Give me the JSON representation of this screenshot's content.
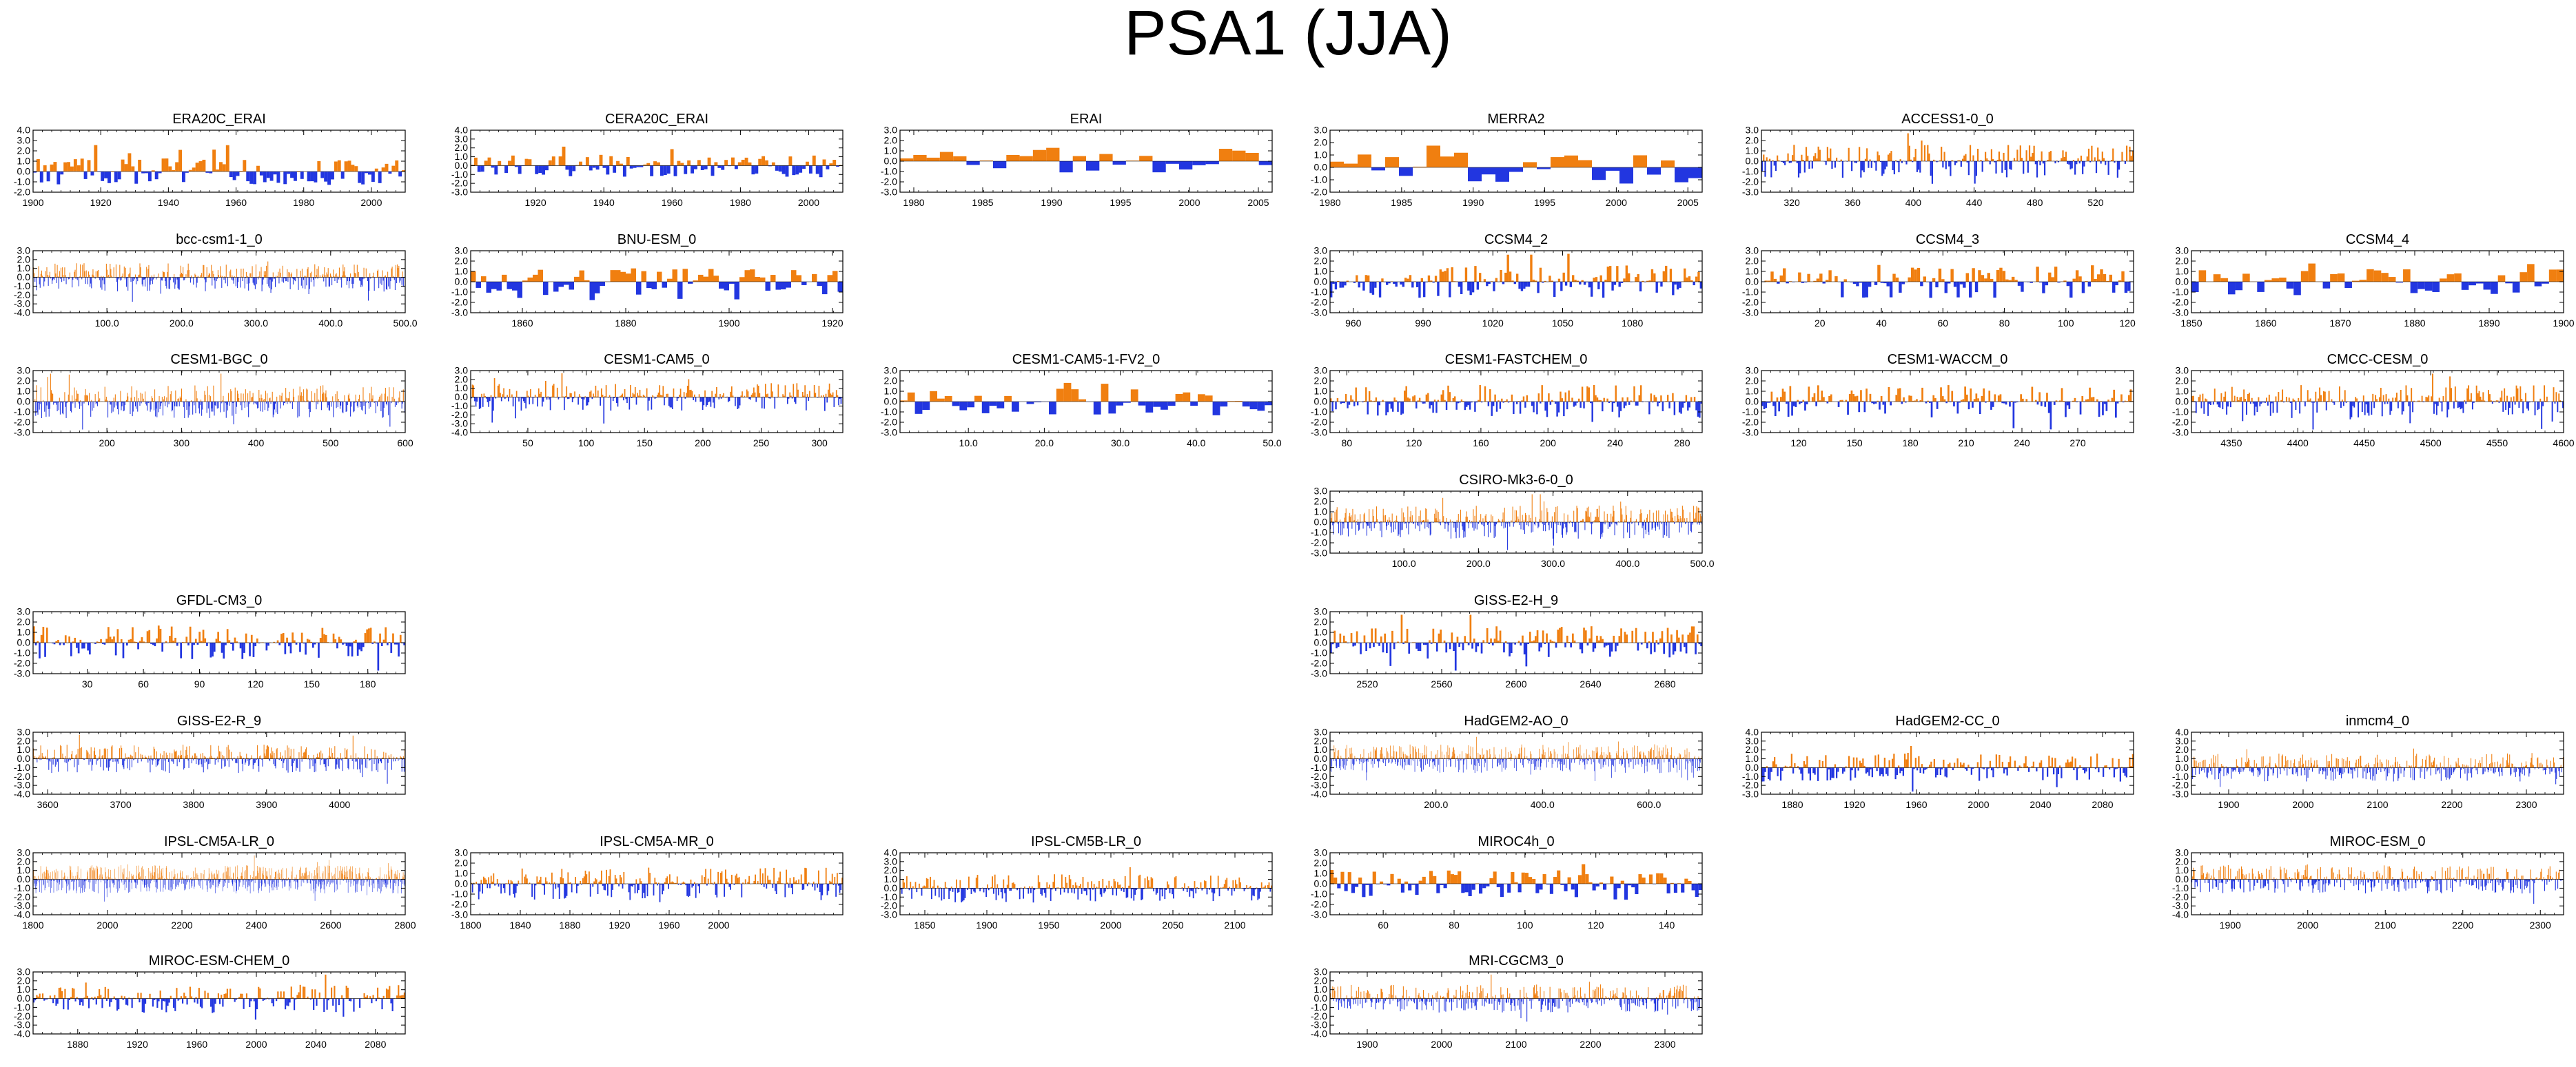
{
  "title": "PSA1 (JJA)",
  "colors": {
    "positive": "#f07f10",
    "negative": "#2236e0",
    "frame": "#000000"
  },
  "chart_data": [
    {
      "type": "area",
      "title": "ERA20C_ERAI",
      "xlim": [
        1900,
        2010
      ],
      "xticks": [
        "1900",
        "1920",
        "1940",
        "1960",
        "1980",
        "2000"
      ],
      "ylim": [
        -2.0,
        4.0
      ],
      "yticks": [
        "4.0",
        "3.0",
        "2.0",
        "1.0",
        "0.0",
        "-1.0",
        "-2.0"
      ],
      "n": 110,
      "style": "smooth",
      "seed": 1
    },
    {
      "type": "area",
      "title": "CERA20C_ERAI",
      "xlim": [
        1901,
        2010
      ],
      "xticks": [
        "1920",
        "1940",
        "1960",
        "1980",
        "2000"
      ],
      "ylim": [
        -3.0,
        4.0
      ],
      "yticks": [
        "4.0",
        "3.0",
        "2.0",
        "1.0",
        "0.0",
        "-1.0",
        "-2.0",
        "-3.0"
      ],
      "n": 110,
      "style": "smooth",
      "seed": 2
    },
    {
      "type": "area",
      "title": "ERAI",
      "xlim": [
        1979,
        2006
      ],
      "xticks": [
        "1980",
        "1985",
        "1990",
        "1995",
        "2000",
        "2005"
      ],
      "ylim": [
        -3.0,
        3.0
      ],
      "yticks": [
        "3.0",
        "2.0",
        "1.0",
        "0.0",
        "-1.0",
        "-2.0",
        "-3.0"
      ],
      "n": 28,
      "style": "smooth",
      "seed": 3
    },
    {
      "type": "area",
      "title": "MERRA2",
      "xlim": [
        1980,
        2006
      ],
      "xticks": [
        "1980",
        "1985",
        "1990",
        "1995",
        "2000",
        "2005"
      ],
      "ylim": [
        -2.0,
        3.0
      ],
      "yticks": [
        "3.0",
        "2.0",
        "1.0",
        "0.0",
        "-1.0",
        "-2.0"
      ],
      "n": 27,
      "style": "smooth",
      "seed": 4
    },
    {
      "type": "area",
      "title": "ACCESS1-0_0",
      "xlim": [
        300,
        545
      ],
      "xticks": [
        "320",
        "360",
        "400",
        "440",
        "480",
        "520"
      ],
      "ylim": [
        -3.0,
        3.0
      ],
      "yticks": [
        "3.0",
        "2.0",
        "1.0",
        "0.0",
        "-1.0",
        "-2.0",
        "-3.0"
      ],
      "n": 245,
      "style": "spiky",
      "seed": 5
    },
    {
      "type": "area",
      "title": "bcc-csm1-1_0",
      "xlim": [
        1,
        500
      ],
      "xticks": [
        "100.0",
        "200.0",
        "300.0",
        "400.0",
        "500.0"
      ],
      "ylim": [
        -4.0,
        3.0
      ],
      "yticks": [
        "3.0",
        "2.0",
        "1.0",
        "0.0",
        "-1.0",
        "-2.0",
        "-3.0",
        "-4.0"
      ],
      "n": 500,
      "style": "spiky",
      "seed": 6
    },
    {
      "type": "area",
      "title": "BNU-ESM_0",
      "xlim": [
        1850,
        1922
      ],
      "xticks": [
        "1860",
        "1880",
        "1900",
        "1920"
      ],
      "ylim": [
        -3.0,
        3.0
      ],
      "yticks": [
        "3.0",
        "2.0",
        "1.0",
        "0.0",
        "-1.0",
        "-2.0",
        "-3.0"
      ],
      "n": 72,
      "style": "smooth",
      "seed": 7
    },
    {
      "type": "area",
      "title": "CCSM4_2",
      "xlim": [
        950,
        1110
      ],
      "xticks": [
        "960",
        "990",
        "1020",
        "1050",
        "1080"
      ],
      "ylim": [
        -3.0,
        3.0
      ],
      "yticks": [
        "3.0",
        "2.0",
        "1.0",
        "0.0",
        "-1.0",
        "-2.0",
        "-3.0"
      ],
      "n": 160,
      "style": "spiky",
      "seed": 8
    },
    {
      "type": "area",
      "title": "CCSM4_3",
      "xlim": [
        1,
        122
      ],
      "xticks": [
        "20",
        "40",
        "60",
        "80",
        "100",
        "120"
      ],
      "ylim": [
        -3.0,
        3.0
      ],
      "yticks": [
        "3.0",
        "2.0",
        "1.0",
        "0.0",
        "-1.0",
        "-2.0",
        "-3.0"
      ],
      "n": 122,
      "style": "spiky",
      "seed": 9
    },
    {
      "type": "area",
      "title": "CCSM4_4",
      "xlim": [
        1850,
        1900
      ],
      "xticks": [
        "1850",
        "1860",
        "1870",
        "1880",
        "1890",
        "1900"
      ],
      "ylim": [
        -3.0,
        3.0
      ],
      "yticks": [
        "3.0",
        "2.0",
        "1.0",
        "0.0",
        "-1.0",
        "-2.0",
        "-3.0"
      ],
      "n": 51,
      "style": "smooth",
      "seed": 10
    },
    {
      "type": "area",
      "title": "CESM1-BGC_0",
      "xlim": [
        101,
        600
      ],
      "xticks": [
        "200",
        "300",
        "400",
        "500",
        "600"
      ],
      "ylim": [
        -3.0,
        3.0
      ],
      "yticks": [
        "3.0",
        "2.0",
        "1.0",
        "0.0",
        "-1.0",
        "-2.0",
        "-3.0"
      ],
      "n": 500,
      "style": "spiky",
      "seed": 11
    },
    {
      "type": "area",
      "title": "CESM1-CAM5_0",
      "xlim": [
        1,
        320
      ],
      "xticks": [
        "50",
        "100",
        "150",
        "200",
        "250",
        "300"
      ],
      "ylim": [
        -4.0,
        3.0
      ],
      "yticks": [
        "3.0",
        "2.0",
        "1.0",
        "0.0",
        "-1.0",
        "-2.0",
        "-3.0",
        "-4.0"
      ],
      "n": 320,
      "style": "spiky",
      "seed": 12
    },
    {
      "type": "area",
      "title": "CESM1-CAM5-1-FV2_0",
      "xlim": [
        1,
        50
      ],
      "xticks": [
        "10.0",
        "20.0",
        "30.0",
        "40.0",
        "50.0"
      ],
      "ylim": [
        -3.0,
        3.0
      ],
      "yticks": [
        "3.0",
        "2.0",
        "1.0",
        "0.0",
        "-1.0",
        "-2.0",
        "-3.0"
      ],
      "n": 50,
      "style": "smooth",
      "seed": 13
    },
    {
      "type": "area",
      "title": "CESM1-FASTCHEM_0",
      "xlim": [
        70,
        292
      ],
      "xticks": [
        "80",
        "120",
        "160",
        "200",
        "240",
        "280"
      ],
      "ylim": [
        -3.0,
        3.0
      ],
      "yticks": [
        "3.0",
        "2.0",
        "1.0",
        "0.0",
        "-1.0",
        "-2.0",
        "-3.0"
      ],
      "n": 222,
      "style": "spiky",
      "seed": 14
    },
    {
      "type": "area",
      "title": "CESM1-WACCM_0",
      "xlim": [
        100,
        300
      ],
      "xticks": [
        "120",
        "150",
        "180",
        "210",
        "240",
        "270"
      ],
      "ylim": [
        -3.0,
        3.0
      ],
      "yticks": [
        "3.0",
        "2.0",
        "1.0",
        "0.0",
        "-1.0",
        "-2.0",
        "-3.0"
      ],
      "n": 200,
      "style": "spiky",
      "seed": 15
    },
    {
      "type": "area",
      "title": "CMCC-CESM_0",
      "xlim": [
        4320,
        4600
      ],
      "xticks": [
        "4350",
        "4400",
        "4450",
        "4500",
        "4550",
        "4600"
      ],
      "ylim": [
        -3.0,
        3.0
      ],
      "yticks": [
        "3.0",
        "2.0",
        "1.0",
        "0.0",
        "-1.0",
        "-2.0",
        "-3.0"
      ],
      "n": 280,
      "style": "spiky",
      "seed": 16
    },
    {
      "type": "area",
      "title": "CSIRO-Mk3-6-0_0",
      "xlim": [
        1,
        500
      ],
      "xticks": [
        "100.0",
        "200.0",
        "300.0",
        "400.0",
        "500.0"
      ],
      "ylim": [
        -3.0,
        3.0
      ],
      "yticks": [
        "3.0",
        "2.0",
        "1.0",
        "0.0",
        "-1.0",
        "-2.0",
        "-3.0"
      ],
      "n": 500,
      "style": "spiky",
      "seed": 17
    },
    {
      "type": "area",
      "title": "GFDL-CM3_0",
      "xlim": [
        1,
        200
      ],
      "xticks": [
        "30",
        "60",
        "90",
        "120",
        "150",
        "180"
      ],
      "ylim": [
        -3.0,
        3.0
      ],
      "yticks": [
        "3.0",
        "2.0",
        "1.0",
        "0.0",
        "-1.0",
        "-2.0",
        "-3.0"
      ],
      "n": 200,
      "style": "spiky",
      "seed": 18
    },
    {
      "type": "area",
      "title": "GISS-E2-H_9",
      "xlim": [
        2500,
        2700
      ],
      "xticks": [
        "2520",
        "2560",
        "2600",
        "2640",
        "2680"
      ],
      "ylim": [
        -3.0,
        3.0
      ],
      "yticks": [
        "3.0",
        "2.0",
        "1.0",
        "0.0",
        "-1.0",
        "-2.0",
        "-3.0"
      ],
      "n": 200,
      "style": "spiky",
      "seed": 19
    },
    {
      "type": "area",
      "title": "GISS-E2-R_9",
      "xlim": [
        3580,
        4090
      ],
      "xticks": [
        "3600",
        "3700",
        "3800",
        "3900",
        "4000"
      ],
      "ylim": [
        -4.0,
        3.0
      ],
      "yticks": [
        "3.0",
        "2.0",
        "1.0",
        "0.0",
        "-1.0",
        "-2.0",
        "-3.0",
        "-4.0"
      ],
      "n": 510,
      "style": "spiky",
      "seed": 20
    },
    {
      "type": "area",
      "title": "HadGEM2-AO_0",
      "xlim": [
        1,
        700
      ],
      "xticks": [
        "200.0",
        "400.0",
        "600.0"
      ],
      "ylim": [
        -4.0,
        3.0
      ],
      "yticks": [
        "3.0",
        "2.0",
        "1.0",
        "0.0",
        "-1.0",
        "-2.0",
        "-3.0",
        "-4.0"
      ],
      "n": 700,
      "style": "spiky",
      "seed": 21
    },
    {
      "type": "area",
      "title": "HadGEM2-CC_0",
      "xlim": [
        1860,
        2100
      ],
      "xticks": [
        "1880",
        "1920",
        "1960",
        "2000",
        "2040",
        "2080"
      ],
      "ylim": [
        -3.0,
        4.0
      ],
      "yticks": [
        "4.0",
        "3.0",
        "2.0",
        "1.0",
        "0.0",
        "-1.0",
        "-2.0",
        "-3.0"
      ],
      "n": 240,
      "style": "spiky",
      "seed": 22
    },
    {
      "type": "area",
      "title": "inmcm4_0",
      "xlim": [
        1850,
        2350
      ],
      "xticks": [
        "1900",
        "2000",
        "2100",
        "2200",
        "2300"
      ],
      "ylim": [
        -3.0,
        4.0
      ],
      "yticks": [
        "4.0",
        "3.0",
        "2.0",
        "1.0",
        "0.0",
        "-1.0",
        "-2.0",
        "-3.0"
      ],
      "n": 500,
      "style": "spiky",
      "seed": 23
    },
    {
      "type": "area",
      "title": "IPSL-CM5A-LR_0",
      "xlim": [
        1800,
        2800
      ],
      "xticks": [
        "1800",
        "2000",
        "2200",
        "2400",
        "2600",
        "2800"
      ],
      "ylim": [
        -4.0,
        3.0
      ],
      "yticks": [
        "3.0",
        "2.0",
        "1.0",
        "0.0",
        "-1.0",
        "-2.0",
        "-3.0",
        "-4.0"
      ],
      "n": 1000,
      "style": "spiky",
      "seed": 24
    },
    {
      "type": "area",
      "title": "IPSL-CM5A-MR_0",
      "xlim": [
        1800,
        2100
      ],
      "xticks": [
        "1800",
        "1840",
        "1880",
        "1920",
        "1960",
        "2000"
      ],
      "ylim": [
        -3.0,
        3.0
      ],
      "yticks": [
        "3.0",
        "2.0",
        "1.0",
        "0.0",
        "-1.0",
        "-2.0",
        "-3.0"
      ],
      "n": 300,
      "style": "spiky",
      "seed": 25
    },
    {
      "type": "area",
      "title": "IPSL-CM5B-LR_0",
      "xlim": [
        1830,
        2130
      ],
      "xticks": [
        "1850",
        "1900",
        "1950",
        "2000",
        "2050",
        "2100"
      ],
      "ylim": [
        -3.0,
        4.0
      ],
      "yticks": [
        "4.0",
        "3.0",
        "2.0",
        "1.0",
        "0.0",
        "-1.0",
        "-2.0",
        "-3.0"
      ],
      "n": 300,
      "style": "spiky",
      "seed": 26
    },
    {
      "type": "area",
      "title": "MIROC4h_0",
      "xlim": [
        45,
        150
      ],
      "xticks": [
        "60",
        "80",
        "100",
        "120",
        "140"
      ],
      "ylim": [
        -3.0,
        3.0
      ],
      "yticks": [
        "3.0",
        "2.0",
        "1.0",
        "0.0",
        "-1.0",
        "-2.0",
        "-3.0"
      ],
      "n": 105,
      "style": "smooth",
      "seed": 27
    },
    {
      "type": "area",
      "title": "MIROC-ESM_0",
      "xlim": [
        1850,
        2330
      ],
      "xticks": [
        "1900",
        "2000",
        "2100",
        "2200",
        "2300"
      ],
      "ylim": [
        -4.0,
        3.0
      ],
      "yticks": [
        "3.0",
        "2.0",
        "1.0",
        "0.0",
        "-1.0",
        "-2.0",
        "-3.0",
        "-4.0"
      ],
      "n": 480,
      "style": "spiky",
      "seed": 28
    },
    {
      "type": "area",
      "title": "MIROC-ESM-CHEM_0",
      "xlim": [
        1850,
        2100
      ],
      "xticks": [
        "1880",
        "1920",
        "1960",
        "2000",
        "2040",
        "2080"
      ],
      "ylim": [
        -4.0,
        3.0
      ],
      "yticks": [
        "3.0",
        "2.0",
        "1.0",
        "0.0",
        "-1.0",
        "-2.0",
        "-3.0",
        "-4.0"
      ],
      "n": 250,
      "style": "spiky",
      "seed": 29
    },
    {
      "type": "area",
      "title": "MRI-CGCM3_0",
      "xlim": [
        1850,
        2350
      ],
      "xticks": [
        "1900",
        "2000",
        "2100",
        "2200",
        "2300"
      ],
      "ylim": [
        -4.0,
        3.0
      ],
      "yticks": [
        "3.0",
        "2.0",
        "1.0",
        "0.0",
        "-1.0",
        "-2.0",
        "-3.0",
        "-4.0"
      ],
      "n": 500,
      "style": "spiky",
      "seed": 30
    }
  ]
}
